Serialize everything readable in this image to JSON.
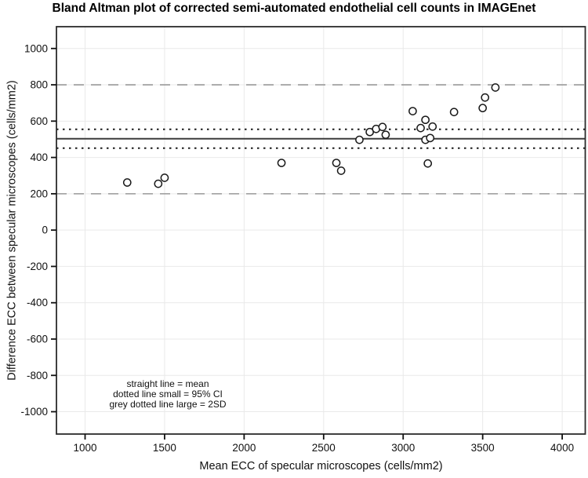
{
  "title": "Bland Altman plot of corrected semi-automated endothelial cell counts in IMAGEnet",
  "chart_data": {
    "type": "scatter",
    "title": "Bland Altman plot of corrected semi-automated endothelial cell counts in IMAGEnet",
    "xlabel": "Mean ECC of specular microscopes (cells/mm2)",
    "ylabel": "Difference ECC between specular microscopes (cells/mm2)",
    "xlim": [
      820,
      4145
    ],
    "ylim": [
      -1123,
      1120
    ],
    "xticks": [
      1000,
      1500,
      2000,
      2500,
      3000,
      3500,
      4000
    ],
    "yticks": [
      1000,
      800,
      600,
      400,
      200,
      0,
      -200,
      -400,
      -600,
      -800,
      -1000
    ],
    "grid": true,
    "marker": "open-circle",
    "points": [
      [
        1265,
        262
      ],
      [
        1460,
        255
      ],
      [
        1500,
        288
      ],
      [
        2235,
        370
      ],
      [
        2580,
        370
      ],
      [
        2610,
        327
      ],
      [
        2725,
        497
      ],
      [
        2790,
        540
      ],
      [
        2830,
        557
      ],
      [
        2870,
        568
      ],
      [
        2890,
        525
      ],
      [
        3060,
        655
      ],
      [
        3110,
        562
      ],
      [
        3140,
        607
      ],
      [
        3140,
        497
      ],
      [
        3155,
        367
      ],
      [
        3170,
        507
      ],
      [
        3185,
        570
      ],
      [
        3320,
        650
      ],
      [
        3500,
        672
      ],
      [
        3515,
        730
      ],
      [
        3580,
        785
      ]
    ],
    "ref_lines": {
      "mean": 503,
      "ci_upper": 555,
      "ci_lower": 451,
      "loa_upper": 800,
      "loa_lower": 200
    },
    "legend_lines": [
      "straight line = mean",
      "dotted line small = 95% CI",
      "grey dotted line large = 2SD"
    ],
    "colors": {
      "point_stroke": "#1a1a1a",
      "point_fill": "#ffffff",
      "mean_line": "#3c3c3c",
      "ci_line": "#1a1a1a",
      "loa_line": "#999999",
      "grid": "#e9e9e9",
      "border": "#2b2b2b",
      "tick": "#111111",
      "text": "#111111"
    }
  }
}
